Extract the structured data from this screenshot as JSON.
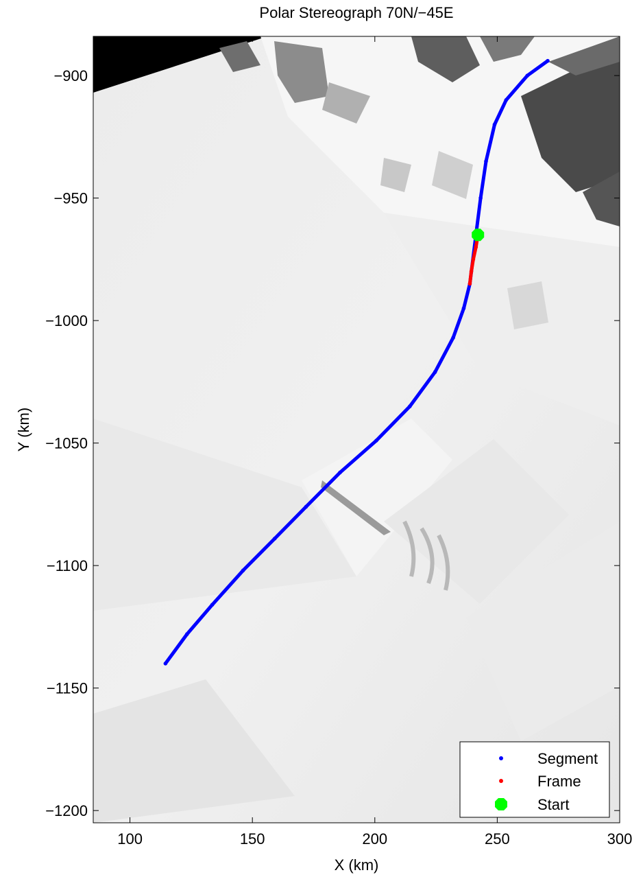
{
  "chart_data": {
    "type": "scatter",
    "title": "Polar Stereograph 70N/−45E",
    "xlabel": "X (km)",
    "ylabel": "Y (km)",
    "xlim": [
      85,
      300
    ],
    "ylim": [
      -1205,
      -884
    ],
    "xticks": [
      100,
      150,
      200,
      250,
      300
    ],
    "yticks": [
      -900,
      -950,
      -1000,
      -1050,
      -1100,
      -1150,
      -1200
    ],
    "xtick_labels": [
      "100",
      "150",
      "200",
      "250",
      "300"
    ],
    "ytick_labels": [
      "−900",
      "−950",
      "−1000",
      "−1050",
      "−1100",
      "−1150",
      "−1200"
    ],
    "background": "grayscale satellite image of ice sheet and coastline",
    "legend_position": "bottom-right",
    "series": [
      {
        "name": "Segment",
        "marker": "dot",
        "color": "#0000ff",
        "x": [
          114.5,
          123.3,
          133.6,
          146.2,
          159.1,
          171.9,
          185.8,
          200.6,
          214.3,
          224.6,
          232.0,
          236.3,
          238.8,
          241.3,
          243.2,
          245.4,
          248.9,
          253.6,
          262.3,
          270.6
        ],
        "y": [
          -1140,
          -1128,
          -1116,
          -1102,
          -1089,
          -1076,
          -1062,
          -1049,
          -1035,
          -1021,
          -1007,
          -995,
          -985,
          -965,
          -950,
          -935,
          -920,
          -910,
          -900,
          -894
        ]
      },
      {
        "name": "Frame",
        "marker": "dot",
        "color": "#ff0000",
        "x": [
          238.8,
          239.4,
          240.2,
          241.3,
          242.1
        ],
        "y": [
          -985,
          -980,
          -975,
          -970,
          -965
        ]
      },
      {
        "name": "Start",
        "marker": "filled-octagon",
        "color": "#00ff00",
        "x": [
          242.1
        ],
        "y": [
          -965
        ]
      }
    ]
  }
}
